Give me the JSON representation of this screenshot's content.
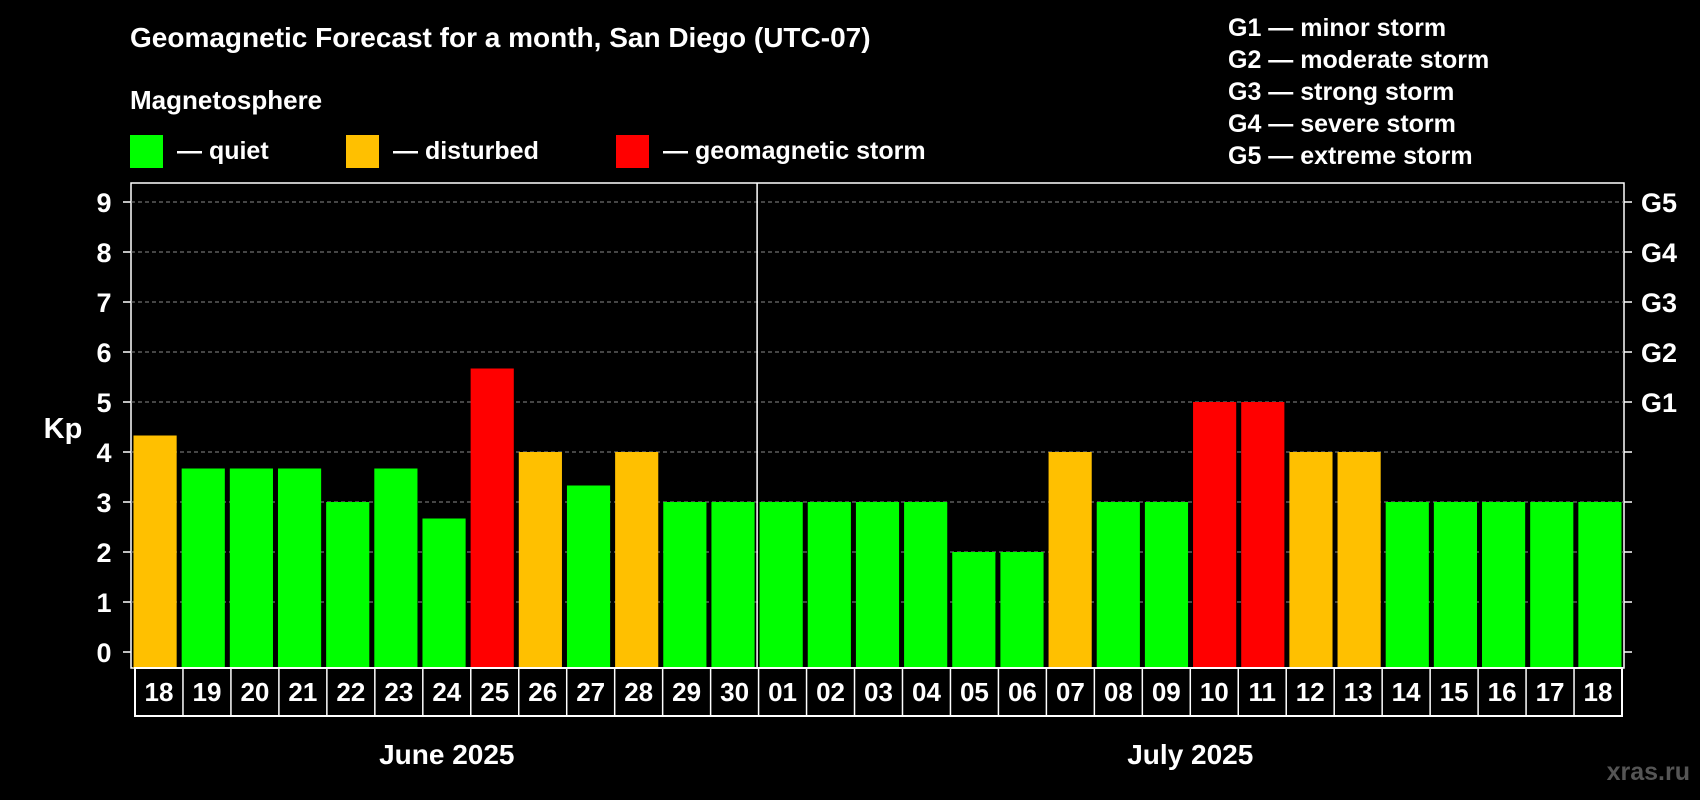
{
  "header": {
    "title": "Geomagnetic Forecast for a month, San Diego (UTC-07)",
    "magnetosphere_label": "Magnetosphere"
  },
  "legend": [
    {
      "label": "— quiet",
      "color": "#00ff00"
    },
    {
      "label": "— disturbed",
      "color": "#ffc000"
    },
    {
      "label": "— geomagnetic storm",
      "color": "#ff0000"
    }
  ],
  "storm_levels": [
    "G1 — minor storm",
    "G2 — moderate storm",
    "G3 — strong storm",
    "G4 — severe storm",
    "G5 — extreme storm"
  ],
  "watermark": "xras.ru",
  "chart_data": {
    "type": "bar",
    "ylabel": "Kp",
    "ylim": [
      0,
      9
    ],
    "yticks": [
      "0",
      "1",
      "2",
      "3",
      "4",
      "5",
      "6",
      "7",
      "8",
      "9"
    ],
    "right_axis_labels": [
      {
        "value": 5,
        "label": "G1"
      },
      {
        "value": 6,
        "label": "G2"
      },
      {
        "value": 7,
        "label": "G3"
      },
      {
        "value": 8,
        "label": "G4"
      },
      {
        "value": 9,
        "label": "G5"
      }
    ],
    "grid": "horizontal dashed",
    "months": [
      {
        "label": "June 2025",
        "days": 13
      },
      {
        "label": "July 2025",
        "days": 18
      }
    ],
    "categories": [
      "18",
      "19",
      "20",
      "21",
      "22",
      "23",
      "24",
      "25",
      "26",
      "27",
      "28",
      "29",
      "30",
      "01",
      "02",
      "03",
      "04",
      "05",
      "06",
      "07",
      "08",
      "09",
      "10",
      "11",
      "12",
      "13",
      "14",
      "15",
      "16",
      "17",
      "18"
    ],
    "values": [
      4.33,
      3.67,
      3.67,
      3.67,
      3.0,
      3.67,
      2.67,
      5.67,
      4.0,
      3.33,
      4.0,
      3.0,
      3.0,
      3.0,
      3.0,
      3.0,
      3.0,
      2.0,
      2.0,
      4.0,
      3.0,
      3.0,
      5.0,
      5.0,
      4.0,
      4.0,
      3.0,
      3.0,
      3.0,
      3.0,
      3.0
    ],
    "status": [
      "disturbed",
      "quiet",
      "quiet",
      "quiet",
      "quiet",
      "quiet",
      "quiet",
      "storm",
      "disturbed",
      "quiet",
      "disturbed",
      "quiet",
      "quiet",
      "quiet",
      "quiet",
      "quiet",
      "quiet",
      "quiet",
      "quiet",
      "disturbed",
      "quiet",
      "quiet",
      "storm",
      "storm",
      "disturbed",
      "disturbed",
      "quiet",
      "quiet",
      "quiet",
      "quiet",
      "quiet"
    ],
    "colors": {
      "quiet": "#00ff00",
      "disturbed": "#ffc000",
      "storm": "#ff0000"
    }
  }
}
